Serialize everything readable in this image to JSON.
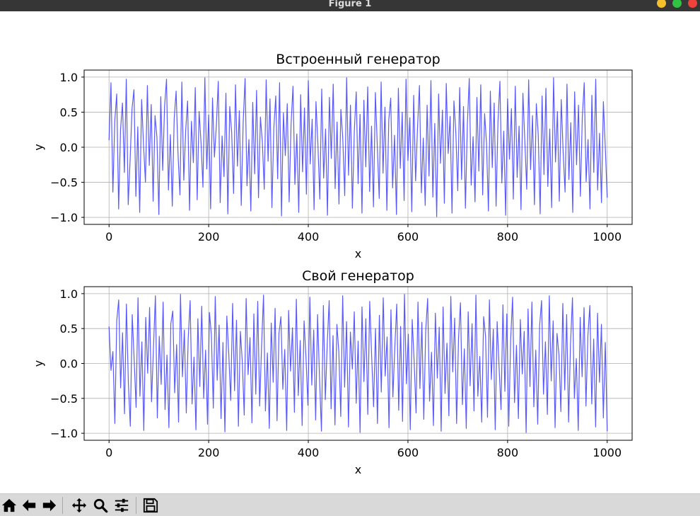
{
  "window": {
    "title": "Figure 1",
    "buttons": [
      {
        "name": "minimize",
        "color": "#f5c02c"
      },
      {
        "name": "maximize",
        "color": "#2fc441"
      },
      {
        "name": "close",
        "color": "#f0413a"
      }
    ]
  },
  "chart_data": [
    {
      "type": "line",
      "title": "Встроенный генератор",
      "xlabel": "x",
      "ylabel": "y",
      "xlim": [
        -50,
        1050
      ],
      "ylim": [
        -1.1,
        1.1
      ],
      "xticks": [
        0,
        200,
        400,
        600,
        800,
        1000
      ],
      "xtick_labels": [
        "0",
        "200",
        "400",
        "600",
        "800",
        "1000"
      ],
      "yticks": [
        -1.0,
        -0.5,
        0.0,
        0.5,
        1.0
      ],
      "ytick_labels": [
        "−1.0",
        "−0.5",
        "0.0",
        "0.5",
        "1.0"
      ],
      "grid": true,
      "color": "#3c3cff",
      "x_range": [
        0,
        1000
      ],
      "y": [
        0.1,
        0.92,
        -0.64,
        0.38,
        0.76,
        -0.88,
        0.25,
        0.63,
        -0.36,
        0.97,
        -0.82,
        -0.18,
        0.55,
        0.82,
        -0.7,
        0.29,
        -0.93,
        0.68,
        0.03,
        -0.5,
        0.88,
        -0.26,
        0.61,
        -0.77,
        0.45,
        0.14,
        -0.96,
        0.72,
        -0.33,
        0.59,
        0.97,
        -0.61,
        0.18,
        -0.84,
        0.41,
        0.8,
        -0.1,
        -0.68,
        0.93,
        -0.47,
        0.24,
        0.66,
        -0.9,
        0.37,
        -0.22,
        0.85,
        -0.75,
        0.51,
        0.07,
        -0.57,
        0.99,
        -0.31,
        0.46,
        -0.88,
        0.7,
        -0.14,
        0.31,
        0.94,
        -0.79,
        0.16,
        -0.42,
        0.77,
        -0.95,
        0.58,
        0.21,
        -0.66,
        0.89,
        -0.27,
        0.52,
        -0.83,
        0.35,
        0.98,
        -0.55,
        0.11,
        -0.91,
        0.64,
        -0.38,
        0.81,
        -0.72,
        0.43,
        0.08,
        -0.6,
        0.96,
        -0.2,
        0.69,
        -0.86,
        0.27,
        0.73,
        -0.45,
        0.92,
        -0.98,
        0.49,
        -0.12,
        0.62,
        -0.78,
        0.33,
        0.87,
        -0.53,
        0.19,
        -0.93,
        0.75,
        -0.35,
        0.56,
        -0.67,
        0.95,
        -0.24,
        0.4,
        -0.89,
        0.65,
        0.05,
        -0.74,
        0.83,
        -0.44,
        0.26,
        -0.97,
        0.71,
        -0.16,
        0.9,
        -0.59,
        0.36,
        -0.81,
        0.54,
        0.12,
        -0.69,
        0.99,
        -0.4,
        0.6,
        -0.87,
        0.22,
        0.79,
        -0.52,
        0.47,
        -0.94,
        0.67,
        -0.28,
        0.86,
        -0.63,
        0.3,
        -0.85,
        0.78,
        0.02,
        -0.73,
        0.93,
        -0.37,
        0.57,
        -0.9,
        0.39,
        0.7,
        -0.58,
        0.17,
        -0.96,
        0.84,
        -0.3,
        0.5,
        -0.76,
        0.97,
        -0.19,
        0.42,
        -0.92,
        0.74,
        -0.48,
        0.28,
        0.88,
        -0.65,
        0.13,
        -0.83,
        0.6,
        -0.41,
        0.95,
        -0.71,
        0.34,
        -0.99,
        0.76,
        -0.23,
        0.53,
        -0.8,
        0.91,
        -0.09,
        0.44,
        -0.94,
        0.66,
        0.2,
        -0.62,
        0.85,
        -0.46,
        0.58,
        -0.87,
        0.32,
        0.98,
        -0.54,
        0.15,
        -0.78,
        0.71,
        -0.34,
        0.89,
        -0.68,
        0.48,
        0.06,
        -0.91,
        0.8,
        -0.29,
        0.63,
        -0.84,
        0.37,
        0.94,
        -0.51,
        0.23,
        -0.97,
        0.69,
        -0.17,
        0.55,
        -0.74,
        0.87,
        -0.43,
        0.3,
        -0.89,
        0.77,
        0.09,
        -0.6,
        0.96,
        -0.32,
        0.45,
        -0.82,
        0.62,
        0.18,
        -0.95,
        0.73,
        -0.39,
        0.84,
        -0.56,
        0.26,
        -0.86,
        0.99,
        -0.21,
        0.51,
        -0.77,
        0.68,
        -0.07,
        -0.64,
        0.9,
        -0.46,
        0.35,
        -0.93,
        0.79,
        -0.25,
        0.6,
        -0.7,
        0.43,
        0.92,
        -0.49,
        0.11,
        -0.88,
        0.74,
        -0.36,
        0.97,
        -0.61,
        0.2,
        -0.79,
        0.65,
        0.0,
        -0.72
      ]
    },
    {
      "type": "line",
      "title": "Свой генератор",
      "xlabel": "x",
      "ylabel": "y",
      "xlim": [
        -50,
        1050
      ],
      "ylim": [
        -1.1,
        1.1
      ],
      "xticks": [
        0,
        200,
        400,
        600,
        800,
        1000
      ],
      "xtick_labels": [
        "0",
        "200",
        "400",
        "600",
        "800",
        "1000"
      ],
      "yticks": [
        -1.0,
        -0.5,
        0.0,
        0.5,
        1.0
      ],
      "ytick_labels": [
        "−1.0",
        "−0.5",
        "0.0",
        "0.5",
        "1.0"
      ],
      "grid": true,
      "color": "#3c3cff",
      "x_range": [
        0,
        1000
      ],
      "y": [
        0.53,
        -0.1,
        0.17,
        -0.86,
        0.62,
        0.91,
        -0.35,
        0.44,
        -0.72,
        0.85,
        -0.28,
        -0.9,
        0.7,
        0.06,
        -0.63,
        0.94,
        -0.47,
        0.31,
        -0.96,
        0.66,
        -0.14,
        0.8,
        -0.55,
        0.22,
        0.97,
        -0.78,
        0.39,
        -0.3,
        0.88,
        -0.66,
        0.12,
        -0.92,
        0.57,
        0.75,
        -0.42,
        0.27,
        -0.84,
        0.99,
        -0.19,
        0.48,
        -0.71,
        0.36,
        0.9,
        -0.58,
        0.09,
        -0.95,
        0.64,
        -0.33,
        0.82,
        -0.5,
        0.19,
        -0.87,
        0.73,
        0.41,
        -0.64,
        0.96,
        -0.24,
        0.55,
        -0.79,
        0.3,
        -0.98,
        0.68,
        0.14,
        -0.53,
        0.86,
        -0.39,
        0.62,
        -0.9,
        0.46,
        0.03,
        -0.74,
        0.93,
        -0.16,
        0.37,
        -0.85,
        0.71,
        -0.44,
        0.89,
        -0.61,
        0.25,
        0.98,
        -0.68,
        0.15,
        -0.93,
        0.58,
        -0.27,
        0.79,
        -0.82,
        0.43,
        0.67,
        -0.37,
        0.2,
        -0.96,
        0.76,
        -0.11,
        0.51,
        -0.7,
        0.92,
        -0.46,
        0.33,
        -0.89,
        0.61,
        0.08,
        -0.6,
        0.95,
        -0.31,
        0.48,
        -0.81,
        0.7,
        -0.2,
        -0.97,
        0.83,
        -0.52,
        0.28,
        0.9,
        -0.65,
        0.4,
        -0.88,
        0.56,
        0.17,
        -0.76,
        0.97,
        -0.34,
        0.6,
        -0.91,
        0.45,
        -0.08,
        0.74,
        -0.57,
        0.32,
        -0.99,
        0.81,
        -0.26,
        0.64,
        -0.73,
        0.89,
        0.11,
        -0.62,
        0.5,
        -0.86,
        0.69,
        -0.41,
        0.94,
        -0.18,
        0.38,
        -0.92,
        0.77,
        -0.48,
        0.23,
        0.85,
        -0.67,
        0.53,
        -0.83,
        0.99,
        -0.29,
        0.42,
        -0.95,
        0.63,
        0.04,
        -0.71,
        0.88,
        -0.36,
        0.59,
        -0.8,
        0.47,
        0.93,
        -0.54,
        0.16,
        -0.89,
        0.72,
        -0.21,
        0.52,
        -0.97,
        0.81,
        -0.43,
        0.29,
        -0.75,
        0.96,
        -0.12,
        0.65,
        -0.86,
        0.36,
        0.87,
        -0.59,
        0.21,
        -0.93,
        0.74,
        -0.32,
        0.57,
        -0.68,
        0.98,
        -0.47,
        0.1,
        -0.84,
        0.67,
        0.39,
        -0.77,
        0.91,
        -0.23,
        0.49,
        -0.95,
        0.6,
        -0.05,
        -0.66,
        0.84,
        -0.4,
        0.71,
        -0.9,
        0.34,
        0.95,
        -0.56,
        0.26,
        -0.79,
        0.63,
        -0.15,
        0.46,
        -0.99,
        0.78,
        -0.33,
        0.88,
        -0.62,
        0.19,
        -0.87,
        0.54,
        0.9,
        -0.44,
        0.31,
        -0.73,
        0.97,
        -0.25,
        0.61,
        -0.92,
        0.43,
        0.13,
        -0.69,
        0.86,
        -0.38,
        0.7,
        -0.84,
        0.28,
        0.94,
        -0.5,
        0.07,
        -0.96,
        0.66,
        -0.19,
        0.8,
        -0.61,
        0.4,
        0.83,
        -0.58,
        0.35,
        -0.91,
        0.72,
        -0.27,
        0.56,
        -0.78,
        0.3,
        -0.97
      ]
    }
  ],
  "toolbar": {
    "tools": [
      {
        "name": "home",
        "icon": "home-icon"
      },
      {
        "name": "back",
        "icon": "arrow-left-icon"
      },
      {
        "name": "forward",
        "icon": "arrow-right-icon"
      },
      {
        "name": "pan",
        "icon": "move-icon"
      },
      {
        "name": "zoom",
        "icon": "magnifier-icon"
      },
      {
        "name": "configure",
        "icon": "sliders-icon"
      },
      {
        "name": "save",
        "icon": "floppy-disk-icon"
      }
    ]
  }
}
